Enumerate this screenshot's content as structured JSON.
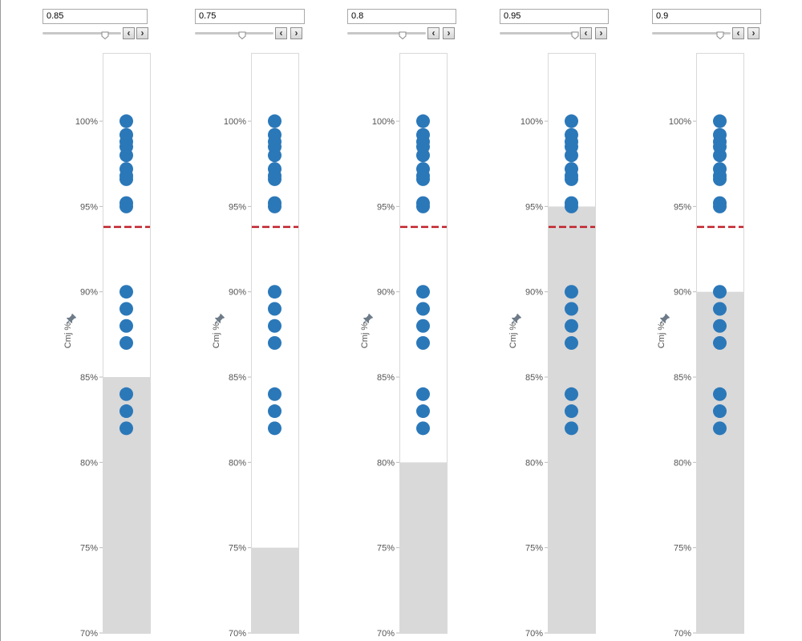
{
  "controls": [
    {
      "parameter_value": "0.85",
      "slider_fraction": 0.8
    },
    {
      "parameter_value": "0.75",
      "slider_fraction": 0.6
    },
    {
      "parameter_value": "0.8",
      "slider_fraction": 0.7
    },
    {
      "parameter_value": "0.95",
      "slider_fraction": 0.96
    },
    {
      "parameter_value": "0.9",
      "slider_fraction": 0.87
    }
  ],
  "buttons": {
    "prev_symbol": "‹",
    "next_symbol": "›"
  },
  "colors": {
    "point": "#2b78b9",
    "reference_line": "#c0212b",
    "band": "#d9d9d9",
    "pin": "#6e7b89"
  },
  "chart_data": [
    {
      "type": "scatter",
      "ylabel": "Cmj %",
      "ylim": [
        0.7,
        1.04
      ],
      "yticks": [
        0.7,
        0.75,
        0.8,
        0.85,
        0.9,
        0.95,
        1.0
      ],
      "ytick_labels": [
        "70%",
        "75%",
        "80%",
        "85%",
        "90%",
        "95%",
        "100%"
      ],
      "values": [
        1.0,
        0.992,
        0.988,
        0.985,
        0.98,
        0.972,
        0.968,
        0.966,
        0.952,
        0.95,
        0.9,
        0.89,
        0.88,
        0.87,
        0.84,
        0.83,
        0.82
      ],
      "band_threshold": 0.85,
      "reference_line": 0.938
    },
    {
      "type": "scatter",
      "ylabel": "Cmj %",
      "ylim": [
        0.7,
        1.04
      ],
      "yticks": [
        0.7,
        0.75,
        0.8,
        0.85,
        0.9,
        0.95,
        1.0
      ],
      "ytick_labels": [
        "70%",
        "75%",
        "80%",
        "85%",
        "90%",
        "95%",
        "100%"
      ],
      "values": [
        1.0,
        0.992,
        0.988,
        0.985,
        0.98,
        0.972,
        0.968,
        0.966,
        0.952,
        0.95,
        0.9,
        0.89,
        0.88,
        0.87,
        0.84,
        0.83,
        0.82
      ],
      "band_threshold": 0.75,
      "reference_line": 0.938
    },
    {
      "type": "scatter",
      "ylabel": "Cmj %",
      "ylim": [
        0.7,
        1.04
      ],
      "yticks": [
        0.7,
        0.75,
        0.8,
        0.85,
        0.9,
        0.95,
        1.0
      ],
      "ytick_labels": [
        "70%",
        "75%",
        "80%",
        "85%",
        "90%",
        "95%",
        "100%"
      ],
      "values": [
        1.0,
        0.992,
        0.988,
        0.985,
        0.98,
        0.972,
        0.968,
        0.966,
        0.952,
        0.95,
        0.9,
        0.89,
        0.88,
        0.87,
        0.84,
        0.83,
        0.82
      ],
      "band_threshold": 0.8,
      "reference_line": 0.938
    },
    {
      "type": "scatter",
      "ylabel": "Cmj %",
      "ylim": [
        0.7,
        1.04
      ],
      "yticks": [
        0.7,
        0.75,
        0.8,
        0.85,
        0.9,
        0.95,
        1.0
      ],
      "ytick_labels": [
        "70%",
        "75%",
        "80%",
        "85%",
        "90%",
        "95%",
        "100%"
      ],
      "values": [
        1.0,
        0.992,
        0.988,
        0.985,
        0.98,
        0.972,
        0.968,
        0.966,
        0.952,
        0.95,
        0.9,
        0.89,
        0.88,
        0.87,
        0.84,
        0.83,
        0.82
      ],
      "band_threshold": 0.95,
      "reference_line": 0.938
    },
    {
      "type": "scatter",
      "ylabel": "Cmj %",
      "ylim": [
        0.7,
        1.04
      ],
      "yticks": [
        0.7,
        0.75,
        0.8,
        0.85,
        0.9,
        0.95,
        1.0
      ],
      "ytick_labels": [
        "70%",
        "75%",
        "80%",
        "85%",
        "90%",
        "95%",
        "100%"
      ],
      "values": [
        1.0,
        0.992,
        0.988,
        0.985,
        0.98,
        0.972,
        0.968,
        0.966,
        0.952,
        0.95,
        0.9,
        0.89,
        0.88,
        0.87,
        0.84,
        0.83,
        0.82
      ],
      "band_threshold": 0.9,
      "reference_line": 0.938
    }
  ]
}
